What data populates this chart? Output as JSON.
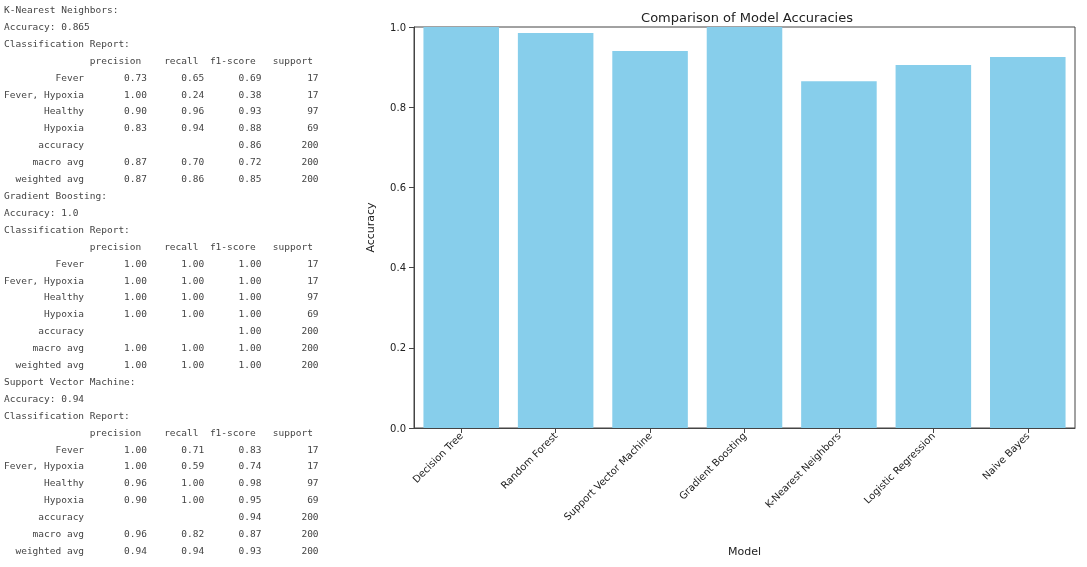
{
  "chart_data": [
    {
      "type": "other",
      "annotations": [
        "K-Nearest Neighbors:",
        "Accuracy: 0.865",
        "Classification Report:",
        "               precision    recall  f1-score   support",
        "         Fever       0.73      0.65      0.69        17",
        "Fever, Hypoxia       1.00      0.24      0.38        17",
        "       Healthy       0.90      0.96      0.93        97",
        "       Hypoxia       0.83      0.94      0.88        69",
        "      accuracy                           0.86       200",
        "     macro avg       0.87      0.70      0.72       200",
        "  weighted avg       0.87      0.86      0.85       200",
        "Gradient Boosting:",
        "Accuracy: 1.0",
        "Classification Report:",
        "               precision    recall  f1-score   support",
        "         Fever       1.00      1.00      1.00        17",
        "Fever, Hypoxia       1.00      1.00      1.00        17",
        "       Healthy       1.00      1.00      1.00        97",
        "       Hypoxia       1.00      1.00      1.00        69",
        "      accuracy                           1.00       200",
        "     macro avg       1.00      1.00      1.00       200",
        "  weighted avg       1.00      1.00      1.00       200",
        "Support Vector Machine:",
        "Accuracy: 0.94",
        "Classification Report:",
        "               precision    recall  f1-score   support",
        "         Fever       1.00      0.71      0.83        17",
        "Fever, Hypoxia       1.00      0.59      0.74        17",
        "       Healthy       0.96      1.00      0.98        97",
        "       Hypoxia       0.90      1.00      0.95        69",
        "      accuracy                           0.94       200",
        "     macro avg       0.96      0.82      0.87       200",
        "  weighted avg       0.94      0.94      0.93       200"
      ]
    },
    {
      "type": "bar",
      "title": "Comparison of Model Accuracies",
      "xlabel": "Model",
      "ylabel": "Accuracy",
      "categories": [
        "Decision Tree",
        "Random Forest",
        "Support Vector Machine",
        "Gradient Boosting",
        "K-Nearest Neighbors",
        "Logistic Regression",
        "Naive Bayes"
      ],
      "values": [
        1.0,
        0.985,
        0.94,
        1.0,
        0.865,
        0.905,
        0.925
      ],
      "color": "#87ceeb",
      "ylim": [
        0,
        1
      ],
      "yticks": [
        {
          "value": 0,
          "label": "0.0"
        },
        0.2,
        0.4,
        0.6,
        0.8,
        {
          "value": 1,
          "label": "1.0"
        }
      ],
      "grid": false
    }
  ]
}
